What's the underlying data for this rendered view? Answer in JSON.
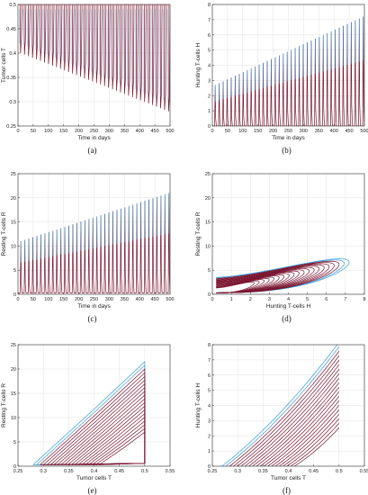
{
  "colors": {
    "outer": "#3a9bd6",
    "inner": "#7a1530",
    "scatter": "#ff3355",
    "frame": "#333333"
  },
  "chart_data": [
    {
      "id": "a",
      "type": "line",
      "panel_label": "(a)",
      "xlabel": "Time in days",
      "ylabel": "Tumor cells T",
      "xlim": [
        0,
        500
      ],
      "ylim": [
        0.25,
        0.5
      ],
      "xticks": [
        0,
        50,
        100,
        150,
        200,
        250,
        300,
        350,
        400,
        450,
        500
      ],
      "yticks": [
        0.25,
        0.3,
        0.35,
        0.4,
        0.45,
        0.5
      ],
      "series": [
        {
          "kind": "oscillation",
          "peaks": 38,
          "base_start": 0.4,
          "base_end": 0.28,
          "top": 0.5
        }
      ]
    },
    {
      "id": "b",
      "type": "line",
      "panel_label": "(b)",
      "xlabel": "Time in days",
      "ylabel": "Hunting T-cells H",
      "xlim": [
        0,
        500
      ],
      "ylim": [
        0,
        8
      ],
      "xticks": [
        0,
        50,
        100,
        150,
        200,
        250,
        300,
        350,
        400,
        450,
        500
      ],
      "yticks": [
        0,
        1,
        2,
        3,
        4,
        5,
        6,
        7,
        8
      ],
      "series": [
        {
          "kind": "spikes",
          "peaks": 38,
          "base": 0.0,
          "peak_start": 2.7,
          "peak_end": 7.2
        }
      ]
    },
    {
      "id": "c",
      "type": "line",
      "panel_label": "(c)",
      "xlabel": "Time in days",
      "ylabel": "Resting T-cells R",
      "xlim": [
        0,
        500
      ],
      "ylim": [
        0,
        25
      ],
      "xticks": [
        0,
        50,
        100,
        150,
        200,
        250,
        300,
        350,
        400,
        450,
        500
      ],
      "yticks": [
        0,
        5,
        10,
        15,
        20,
        25
      ],
      "series": [
        {
          "kind": "spikes",
          "peaks": 38,
          "base": 0.3,
          "peak_start": 11,
          "peak_end": 21
        }
      ]
    },
    {
      "id": "d",
      "type": "line",
      "panel_label": "(d)",
      "xlabel": "Hunting T-cells H",
      "ylabel": "Resting T-cells R",
      "xlim": [
        0,
        8
      ],
      "ylim": [
        0,
        25
      ],
      "xticks": [
        0,
        1,
        2,
        3,
        4,
        5,
        6,
        7,
        8
      ],
      "yticks": [
        0,
        5,
        10,
        15,
        20,
        25
      ],
      "series": [
        {
          "kind": "phase_d",
          "loops": 20,
          "x_min": 0.2,
          "x_max_start": 2.2,
          "x_max_end": 7.2,
          "y_min": 0.3,
          "y_max_start": 7,
          "y_max_end": 21.5
        }
      ]
    },
    {
      "id": "e",
      "type": "line",
      "panel_label": "(e)",
      "xlabel": "Tumor cells T",
      "ylabel": "Resting T-cells R",
      "xlim": [
        0.25,
        0.55
      ],
      "ylim": [
        0,
        25
      ],
      "xticks": [
        0.25,
        0.3,
        0.35,
        0.4,
        0.45,
        0.5,
        0.55
      ],
      "yticks": [
        0,
        5,
        10,
        15,
        20,
        25
      ],
      "series": [
        {
          "kind": "phase_e",
          "loops": 20,
          "x_right": 0.5,
          "x_left_start": 0.41,
          "x_left_end": 0.28,
          "y_min": 0.3,
          "y_max_start": 7,
          "y_max_end": 21.5
        }
      ]
    },
    {
      "id": "f",
      "type": "line",
      "panel_label": "(f)",
      "xlabel": "Tumor cells T",
      "ylabel": "Hunting T-cells H",
      "xlim": [
        0.25,
        0.55
      ],
      "ylim": [
        0,
        8
      ],
      "xticks": [
        0.25,
        0.3,
        0.35,
        0.4,
        0.45,
        0.5,
        0.55
      ],
      "yticks": [
        0,
        1,
        2,
        3,
        4,
        5,
        6,
        7,
        8
      ],
      "series": [
        {
          "kind": "phase_f",
          "loops": 20,
          "x_right": 0.5,
          "x_left_start": 0.42,
          "x_left_end": 0.29,
          "y_max_start": 2.2,
          "y_max_end": 7.1
        }
      ]
    }
  ]
}
